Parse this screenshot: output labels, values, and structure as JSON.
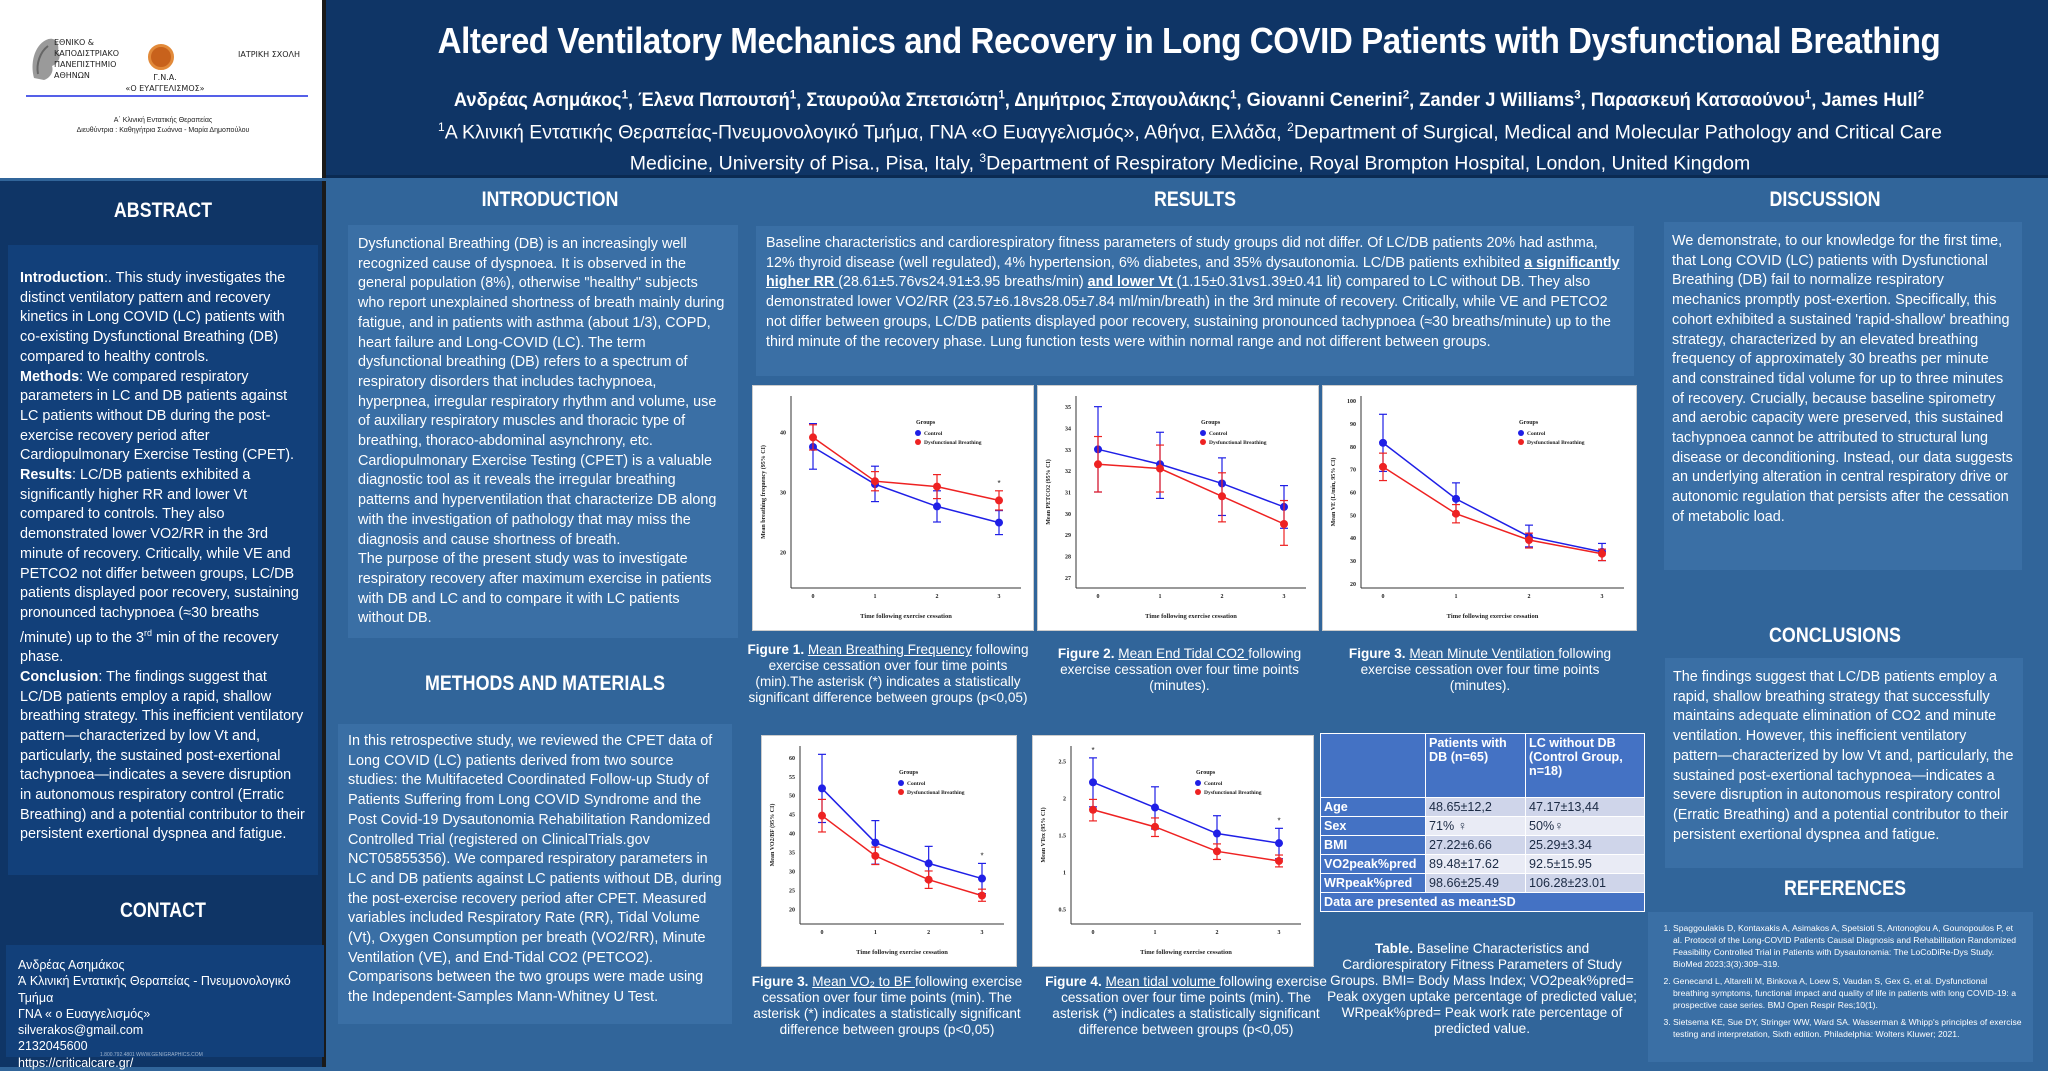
{
  "header": {
    "logos": {
      "university": "ΕΘΝΙΚΟ & ΚΑΠΟΔΙΣΤΡΙΑΚΟ ΠΑΝΕΠΙΣΤΗΜΙΟ ΑΘΗΝΩΝ",
      "university_lines": [
        "ΕΘΝΙΚΟ &",
        "ΚΑΠΟΔΙΣΤΡΙΑΚΟ",
        "ΠΑΝΕΠΙΣΤΗΜΙΟ",
        "ΑΘΗΝΩΝ"
      ],
      "hospital_line1": "Γ.Ν.Α.",
      "hospital_line2": "«Ο ΕΥΑΓΓΕΛΙΣΜΟΣ»",
      "school": "ΙΑΤΡΙΚΗ ΣΧΟΛΗ",
      "clinic_line1": "Α΄ Κλινική Εντατικής Θεραπείας",
      "clinic_line2": "Διευθύντρια : Καθηγήτρια Σωάννα - Μαρία Δημοπούλου"
    },
    "title": "Altered Ventilatory Mechanics and Recovery in Long COVID  Patients with Dysfunctional Breathing",
    "authors": [
      {
        "name": "Ανδρέας Ασημάκος",
        "sup": "1"
      },
      {
        "name": "Έλενα Παπουτσή",
        "sup": "1"
      },
      {
        "name": "Σταυρούλα Σπετσιώτη",
        "sup": "1"
      },
      {
        "name": "Δημήτριος Σπαγουλάκης",
        "sup": "1"
      },
      {
        "name": "Giovanni Cenerini",
        "sup": "2"
      },
      {
        "name": "Zander J Williams",
        "sup": "3"
      },
      {
        "name": "Παρασκευή Κατσαούνου",
        "sup": "1"
      },
      {
        "name": "James Hull",
        "sup": "2"
      }
    ],
    "affiliations": [
      {
        "sup": "1",
        "text": "Α Κλινική Εντατικής Θεραπείας-Πνευμονολογικό Τμήμα, ΓΝΑ «Ο Ευαγγελισμός», Αθήνα, Ελλάδα, "
      },
      {
        "sup": "2",
        "text": "Department of Surgical, Medical and Molecular Pathology and Critical Care Medicine, University of Pisa., Pisa, Italy, "
      },
      {
        "sup": "3",
        "text": "Department of Respiratory Medicine, Royal Brompton Hospital, London, United Kingdom"
      }
    ]
  },
  "abstract": {
    "title": "ABSTRACT",
    "introduction_label": "Introduction",
    "introduction": ":. This study investigates the distinct ventilatory pattern and recovery kinetics in Long COVID (LC) patients with co-existing Dysfunctional Breathing (DB) compared to healthy controls.",
    "methods_label": "Methods",
    "methods": ": We compared respiratory parameters in LC and DB patients against LC patients without DB during the post-exercise recovery period after Cardiopulmonary Exercise Testing (CPET).",
    "results_label": "Results",
    "results_a": ": LC/DB patients exhibited a significantly higher RR and lower Vt compared to controls. They also demonstrated lower VO2/RR in the 3rd minute of recovery. Critically, while VE and PETCO2 not differ between groups, LC/DB patients displayed poor recovery, sustaining pronounced tachypnoea (≈30 breaths /minute) up to the 3",
    "results_sup": "rd",
    "results_b": " min  of the recovery phase.",
    "conclusion_label": "Conclusion",
    "conclusion": ": The findings suggest that LC/DB patients employ a rapid, shallow breathing strategy. This inefficient ventilatory pattern—characterized by low Vt and, particularly, the sustained post-exertional tachypnoea—indicates a severe disruption in autonomous respiratory control (Erratic Breathing) and a potential contributor to their persistent exertional dyspnea and fatigue."
  },
  "contact": {
    "title": "CONTACT",
    "lines": [
      "Ανδρέας Ασημάκος",
      "Ά Κλινική  Εντατικής Θεραπείας - Πνευμονολογικό Τμήμα",
      "ΓΝΑ « ο Ευαγγελισμός»",
      "silverakos@gmail.com",
      "2132045600",
      "https://criticalcare.gr/"
    ],
    "footer": "1.800.792.4801   WWW.GENIGRAPHICS.COM"
  },
  "introduction": {
    "title": "INTRODUCTION",
    "paragraph1": "Dysfunctional Breathing (DB) is an increasingly well recognized cause of dyspnoea. It is observed in the general population (8%), otherwise \"healthy\" subjects who report unexplained shortness of breath mainly during fatigue, and in patients with asthma (about 1/3), COPD, heart failure and Long-COVID (LC). The term dysfunctional breathing (DB) refers to a spectrum of respiratory disorders that includes tachypnoea,  hyperpnea, irregular respiratory rhythm and volume, use of auxiliary respiratory muscles and thoracic type of breathing, thoraco-abdominal asynchrony, etc. Cardiopulmonary Exercise Testing (CPET) is a valuable diagnostic tool as it reveals the irregular breathing patterns and hyperventilation that characterize DB along with the investigation of pathology that may miss the diagnosis and cause shortness of breath.",
    "paragraph2": "The purpose of the present study was to investigate respiratory recovery after maximum exercise in patients with DB and LC and to compare it with LC patients without DB."
  },
  "methods": {
    "title": "METHODS AND MATERIALS",
    "text": "In this retrospective study, we reviewed the CPET data of Long COVID (LC) patients derived from two source studies: the Multifaceted Coordinated Follow-up Study of Patients Suffering from Long COVID Syndrome and the Post Covid-19 Dysautonomia Rehabilitation Randomized Controlled Trial (registered on ClinicalTrials.gov NCT05855356). We compared respiratory parameters in LC and DB patients against LC patients without DB, during the post-exercise recovery period after CPET. Measured variables included Respiratory Rate (RR), Tidal Volume (Vt), Oxygen Consumption per breath (VO2/RR), Minute Ventilation (VE), and End-Tidal CO2 (PETCO2). Comparisons between the two groups were made using the Independent-Samples Mann-Whitney U Test."
  },
  "results": {
    "title": "RESULTS",
    "text_a": "Baseline characteristics and cardiorespiratory fitness parameters of study groups did not differ. Of LC/DB patients 20% had asthma, 12% thyroid disease (well regulated), 4% hypertension, 6% diabetes, and 35% dysautonomia. LC/DB patients exhibited ",
    "highlight_rr": "a significantly higher RR ",
    "text_b": "(28.61±5.76vs24.91±3.95 breaths/min) ",
    "highlight_vt": "and lower Vt ",
    "text_c": "(1.15±0.31vs1.39±0.41 lit) compared to LC without DB. They also demonstrated lower VO2/RR (23.57±6.18vs28.05±7.84 ml/min/breath) in the 3rd minute of recovery. Critically, while VE and PETCO2 not differ between groups, LC/DB patients displayed poor recovery, sustaining pronounced tachypnoea (≈30 breaths/minute) up to the third minute of the recovery phase.  Lung function tests were within normal range and not different between groups.",
    "captions": [
      {
        "label": "Figure 1.",
        "link": "Mean Breathing Frequency",
        "rest": " following exercise cessation over four time points (min).The asterisk (*) indicates a statistically significant difference between groups (p<0,05)"
      },
      {
        "label": "Figure 2.",
        "link": "Mean End Tidal CO2 ",
        "rest": "following exercise cessation over four time points (minutes)."
      },
      {
        "label": "Figure 3.",
        "link": "Mean Minute Ventilation ",
        "rest": "following exercise cessation over four time points (minutes)."
      },
      {
        "label": "Figure 3.",
        "link": "Mean VO₂ to BF ",
        "rest": "following exercise cessation over four time points (min). The asterisk (*) indicates a statistically significant difference between groups (p<0,05)"
      },
      {
        "label": "Figure 4.",
        "link": "Mean tidal volume ",
        "rest": "following exercise cessation over four time points (min). The asterisk (*) indicates a statistically significant difference between groups (p<0,05)"
      }
    ],
    "table": {
      "headers": [
        "",
        "Patients with DB (n=65)",
        "LC without DB (Control Group, n=18)"
      ],
      "rows": [
        [
          "Age",
          "48.65±12,2",
          "47.17±13,44"
        ],
        [
          "Sex",
          "71% ♀",
          "50%♀"
        ],
        [
          "BMI",
          "27.22±6.66",
          "25.29±3.34"
        ],
        [
          "VO2peak%pred",
          "89.48±17.62",
          "92.5±15.95"
        ],
        [
          "WRpeak%pred",
          "98.66±25.49",
          "106.28±23.01"
        ]
      ],
      "footer": "Data are presented as mean±SD",
      "caption_label": "Table.",
      "caption_text": " Baseline Characteristics and Cardiorespiratory Fitness Parameters of Study Groups. BMI= Body Mass Index; VO2peak%pred= Peak oxygen uptake percentage of predicted value; WRpeak%pred= Peak work rate percentage of predicted value."
    }
  },
  "discussion": {
    "title": "DISCUSSION",
    "text": "We demonstrate, to our knowledge for the first time, that Long COVID (LC) patients with Dysfunctional Breathing (DB) fail to normalize respiratory mechanics promptly post-exertion. Specifically, this cohort exhibited a sustained 'rapid-shallow' breathing strategy, characterized by an elevated breathing frequency of approximately 30 breaths per minute and constrained tidal volume for up to three minutes of recovery. Crucially, because baseline spirometry and aerobic capacity were preserved, this sustained tachypnoea cannot be attributed to structural lung disease or deconditioning. Instead, our data suggests an underlying alteration in central respiratory drive or autonomic regulation that persists after the cessation of metabolic load."
  },
  "conclusions": {
    "title": "CONCLUSIONS",
    "text": "The findings suggest that LC/DB patients employ a rapid, shallow breathing strategy that successfully maintains adequate elimination of CO2 and minute ventilation. However, this inefficient ventilatory pattern—characterized by low Vt and, particularly, the sustained post-exertional tachypnoea—indicates a severe disruption in autonomous respiratory control (Erratic Breathing) and a potential contributor to their persistent exertional dyspnea and fatigue."
  },
  "references": {
    "title": "REFERENCES",
    "items": [
      "Spaggoulakis D, Kontaxakis A, Asimakos A, Spetsioti S, Antonoglou A, Gounopoulos P, et al. Protocol of the Long-COVID Patients Causal Diagnosis and Rehabilitation Randomized Feasibility Controlled Trial in Patients with Dysautonomia: The LoCoDiRe-Dys Study. BioMed 2023;3(3):309–319.",
      "Genecand L, Altarelli M, Binkova A, Loew S, Vaudan S, Gex G, et al. Dysfunctional breathing symptoms, functional impact and quality of life in patients with long COVID-19: a prospective case series. BMJ Open Respir Res;10(1).",
      "Sietsema KE, Sue DY, Stringer WW, Ward SA. Wasserman & Whipp's principles of exercise testing and interpretation, Sixth edition. Philadelphia: Wolters Kluwer; 2021."
    ]
  },
  "chart_data": [
    {
      "type": "line",
      "title": "Mean Breathing Frequency",
      "xlabel": "Time following exercise cessation",
      "ylabel": "Mean breathing frequency (95% CI)",
      "x": [
        0,
        1,
        2,
        3
      ],
      "ylim": [
        14,
        46
      ],
      "yticks": [
        20,
        30,
        40
      ],
      "legend_title": "Groups",
      "legend_position": "top-right",
      "significant_at": [
        3
      ],
      "series": [
        {
          "name": "Control",
          "color": "#1f1fe6",
          "values": [
            37.5,
            31.3,
            27.6,
            24.9
          ],
          "ci_low": [
            33.8,
            28.4,
            25.0,
            22.9
          ],
          "ci_high": [
            41.4,
            34.3,
            30.2,
            26.9
          ]
        },
        {
          "name": "Dysfunctional Breathing",
          "color": "#ee2222",
          "values": [
            39.1,
            31.8,
            30.9,
            28.6
          ],
          "ci_low": [
            37.0,
            30.2,
            28.9,
            27.0
          ],
          "ci_high": [
            41.2,
            33.4,
            32.9,
            30.2
          ]
        }
      ]
    },
    {
      "type": "line",
      "title": "Mean End Tidal CO2",
      "xlabel": "Time following exercise cessation",
      "ylabel": "Mean PETCO2 (95% CI)",
      "x": [
        0,
        1,
        2,
        3
      ],
      "ylim": [
        26.5,
        35.5
      ],
      "yticks": [
        27,
        28,
        29,
        30,
        31,
        32,
        33,
        34,
        35
      ],
      "legend_title": "Groups",
      "legend_position": "top-right",
      "significant_at": [],
      "series": [
        {
          "name": "Control",
          "color": "#1f1fe6",
          "values": [
            33.0,
            32.3,
            31.4,
            30.3
          ],
          "ci_low": [
            31.0,
            30.7,
            29.9,
            29.3
          ],
          "ci_high": [
            35.0,
            33.8,
            32.6,
            31.3
          ]
        },
        {
          "name": "Dysfunctional Breathing",
          "color": "#ee2222",
          "values": [
            32.3,
            32.1,
            30.8,
            29.5
          ],
          "ci_low": [
            31.0,
            31.0,
            29.6,
            28.5
          ],
          "ci_high": [
            33.6,
            33.2,
            31.9,
            30.6
          ]
        }
      ]
    },
    {
      "type": "line",
      "title": "Mean Minute Ventilation",
      "xlabel": "Time following exercise cessation",
      "ylabel": "Mean VE (L/min, 95% CI)",
      "x": [
        0,
        1,
        2,
        3
      ],
      "ylim": [
        18,
        102
      ],
      "yticks": [
        20,
        30,
        40,
        50,
        60,
        70,
        80,
        90,
        100
      ],
      "legend_title": "Groups",
      "legend_position": "top-right",
      "significant_at": [],
      "series": [
        {
          "name": "Control",
          "color": "#1f1fe6",
          "values": [
            81.5,
            57.0,
            40.5,
            33.8
          ],
          "ci_low": [
            69.0,
            50.0,
            36.0,
            30.0
          ],
          "ci_high": [
            94.0,
            64.0,
            45.5,
            37.5
          ]
        },
        {
          "name": "Dysfunctional Breathing",
          "color": "#ee2222",
          "values": [
            71.0,
            50.5,
            39.0,
            33.0
          ],
          "ci_low": [
            65.0,
            46.5,
            35.5,
            30.0
          ],
          "ci_high": [
            77.0,
            54.5,
            42.0,
            35.0
          ]
        }
      ]
    },
    {
      "type": "line",
      "title": "Mean VO2 to BF",
      "xlabel": "Time following exercise cessation",
      "ylabel": "Mean VO2/BF (95% CI)",
      "x": [
        0,
        1,
        2,
        3
      ],
      "ylim": [
        16,
        63
      ],
      "yticks": [
        20,
        25,
        30,
        35,
        40,
        45,
        50,
        55,
        60
      ],
      "legend_title": "Groups",
      "legend_position": "top-right",
      "significant_at": [
        3
      ],
      "series": [
        {
          "name": "Control",
          "color": "#1f1fe6",
          "values": [
            51.8,
            37.5,
            32.0,
            28.0
          ],
          "ci_low": [
            42.8,
            31.8,
            27.5,
            24.0
          ],
          "ci_high": [
            60.8,
            43.3,
            36.5,
            32.0
          ]
        },
        {
          "name": "Dysfunctional Breathing",
          "color": "#ee2222",
          "values": [
            44.6,
            34.0,
            27.7,
            23.5
          ],
          "ci_low": [
            40.3,
            31.7,
            25.4,
            22.0
          ],
          "ci_high": [
            48.9,
            36.3,
            30.0,
            25.2
          ]
        }
      ]
    },
    {
      "type": "line",
      "title": "Mean tidal volume",
      "xlabel": "Time following exercise cessation",
      "ylabel": "Mean VTex (95% CI)",
      "x": [
        0,
        1,
        2,
        3
      ],
      "ylim": [
        0.3,
        2.7
      ],
      "yticks": [
        0.5,
        1.0,
        1.5,
        2.0,
        2.5
      ],
      "legend_title": "Groups",
      "legend_position": "top-right",
      "significant_at": [
        0,
        3
      ],
      "series": [
        {
          "name": "Control",
          "color": "#1f1fe6",
          "values": [
            2.21,
            1.87,
            1.52,
            1.39
          ],
          "ci_low": [
            1.88,
            1.58,
            1.28,
            1.18
          ],
          "ci_high": [
            2.54,
            2.15,
            1.76,
            1.59
          ]
        },
        {
          "name": "Dysfunctional Breathing",
          "color": "#ee2222",
          "values": [
            1.84,
            1.61,
            1.28,
            1.15
          ],
          "ci_low": [
            1.69,
            1.48,
            1.17,
            1.07
          ],
          "ci_high": [
            1.98,
            1.73,
            1.38,
            1.23
          ]
        }
      ]
    }
  ]
}
